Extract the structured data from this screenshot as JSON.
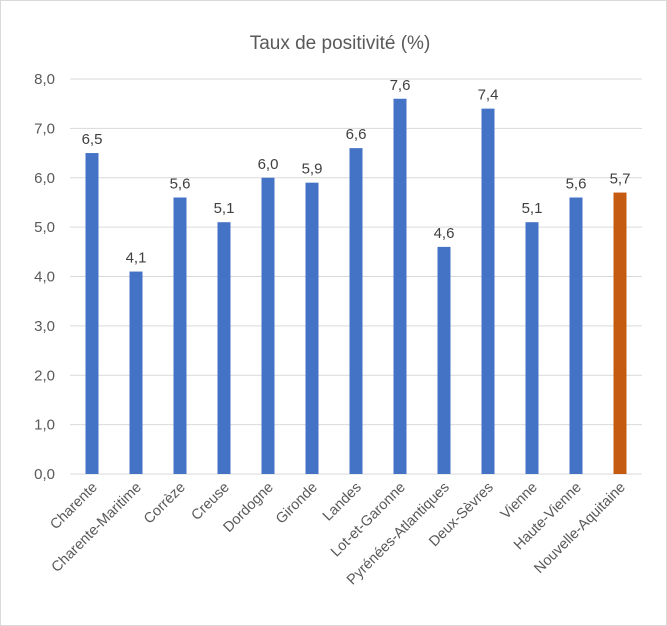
{
  "chart_data": {
    "type": "bar",
    "title": "Taux de positivité (%)",
    "categories": [
      "Charente",
      "Charente-Maritime",
      "Corrèze",
      "Creuse",
      "Dordogne",
      "Gironde",
      "Landes",
      "Lot-et-Garonne",
      "Pyrénées-Atlantiques",
      "Deux-Sèvres",
      "Vienne",
      "Haute-Vienne",
      "Nouvelle-Aquitaine"
    ],
    "values": [
      6.5,
      4.1,
      5.6,
      5.1,
      6.0,
      5.9,
      6.6,
      7.6,
      4.6,
      7.4,
      5.1,
      5.6,
      5.7
    ],
    "value_labels": [
      "6,5",
      "4,1",
      "5,6",
      "5,1",
      "6,0",
      "5,9",
      "6,6",
      "7,6",
      "4,6",
      "7,4",
      "5,1",
      "5,6",
      "5,7"
    ],
    "y_ticks": [
      "0,0",
      "1,0",
      "2,0",
      "3,0",
      "4,0",
      "5,0",
      "6,0",
      "7,0",
      "8,0"
    ],
    "ylim": [
      0,
      8
    ],
    "grid": true,
    "colors": {
      "default": "#4472c4",
      "highlight": "#c55a11",
      "highlight_category": "Nouvelle-Aquitaine"
    }
  }
}
